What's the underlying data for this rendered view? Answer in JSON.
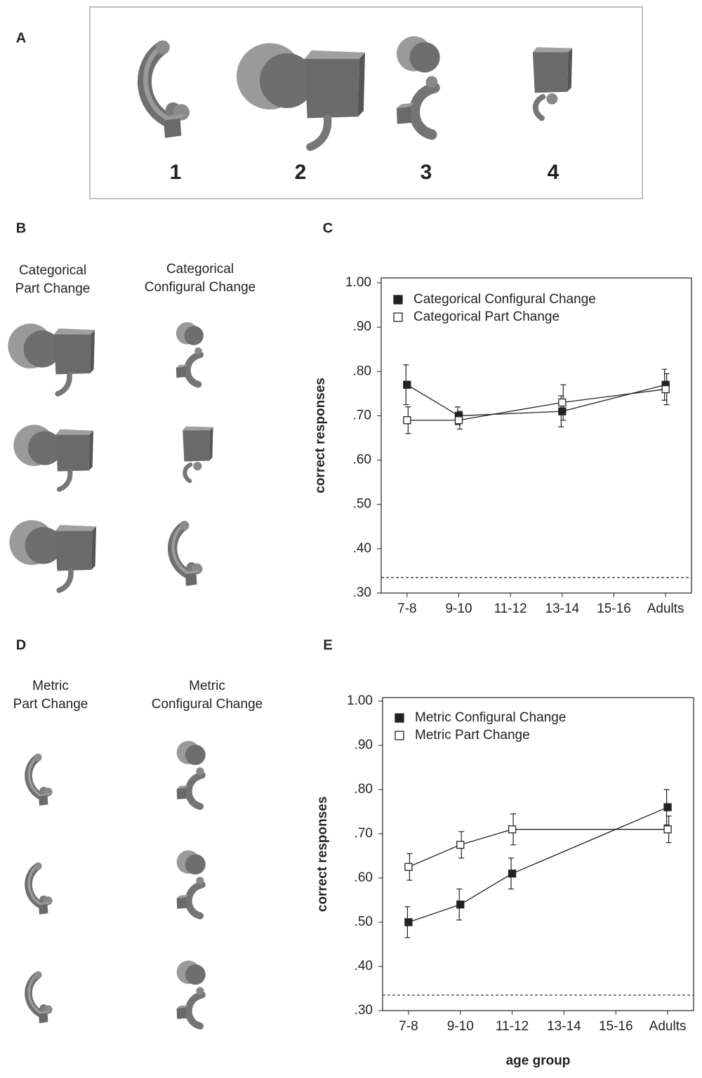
{
  "figure": {
    "panels": [
      "A",
      "B",
      "C",
      "D",
      "E"
    ],
    "object_numbers": [
      "1",
      "2",
      "3",
      "4"
    ],
    "headers": [
      [
        "Categorical",
        "Part Change"
      ],
      [
        "Categorical",
        "Configural Change"
      ],
      [
        "Metric",
        "Part Change"
      ],
      [
        "Metric",
        "Configural Change"
      ]
    ]
  },
  "chart_data": [
    {
      "type": "line",
      "categories": [
        "7-8",
        "9-10",
        "11-12",
        "13-14",
        "15-16",
        "Adults"
      ],
      "series": [
        {
          "name": "Categorical Configural Change",
          "color": "#222222",
          "marker_fill": "#222222",
          "values": [
            0.77,
            0.7,
            null,
            0.71,
            null,
            0.77
          ],
          "errors": [
            0.045,
            0.02,
            null,
            0.035,
            null,
            0.035
          ]
        },
        {
          "name": "Categorical Part Change",
          "color": "#222222",
          "marker_fill": "#ffffff",
          "values": [
            0.69,
            0.69,
            null,
            0.73,
            null,
            0.76
          ],
          "errors": [
            0.03,
            0.02,
            null,
            0.04,
            null,
            0.035
          ]
        }
      ],
      "ylim": [
        0.3,
        1.0
      ],
      "yticks": [
        {
          "value": 1.0,
          "label": "1.00"
        },
        {
          "value": 0.9,
          "label": ".90"
        },
        {
          "value": 0.8,
          "label": ".80"
        },
        {
          "value": 0.7,
          "label": ".70"
        },
        {
          "value": 0.6,
          "label": ".60"
        },
        {
          "value": 0.5,
          "label": ".50"
        },
        {
          "value": 0.4,
          "label": ".40"
        },
        {
          "value": 0.3,
          "label": ".30"
        }
      ],
      "y_label": "correct responses",
      "reference_line": 0.335
    },
    {
      "type": "line",
      "categories": [
        "7-8",
        "9-10",
        "11-12",
        "13-14",
        "15-16",
        "Adults"
      ],
      "series": [
        {
          "name": "Metric Configural Change",
          "color": "#222222",
          "marker_fill": "#222222",
          "values": [
            0.5,
            0.54,
            0.61,
            null,
            null,
            0.76
          ],
          "errors": [
            0.035,
            0.035,
            0.035,
            null,
            null,
            0.04
          ]
        },
        {
          "name": "Metric Part Change",
          "color": "#222222",
          "marker_fill": "#ffffff",
          "values": [
            0.625,
            0.675,
            0.71,
            null,
            null,
            0.71
          ],
          "errors": [
            0.03,
            0.03,
            0.035,
            null,
            null,
            0.03
          ]
        }
      ],
      "ylim": [
        0.3,
        1.0
      ],
      "yticks": [
        {
          "value": 1.0,
          "label": "1.00"
        },
        {
          "value": 0.9,
          "label": ".90"
        },
        {
          "value": 0.8,
          "label": ".80"
        },
        {
          "value": 0.7,
          "label": ".70"
        },
        {
          "value": 0.6,
          "label": ".60"
        },
        {
          "value": 0.5,
          "label": ".50"
        },
        {
          "value": 0.4,
          "label": ".40"
        },
        {
          "value": 0.3,
          "label": ".30"
        }
      ],
      "y_label": "correct responses",
      "x_label": "age group",
      "reference_line": 0.335
    }
  ]
}
